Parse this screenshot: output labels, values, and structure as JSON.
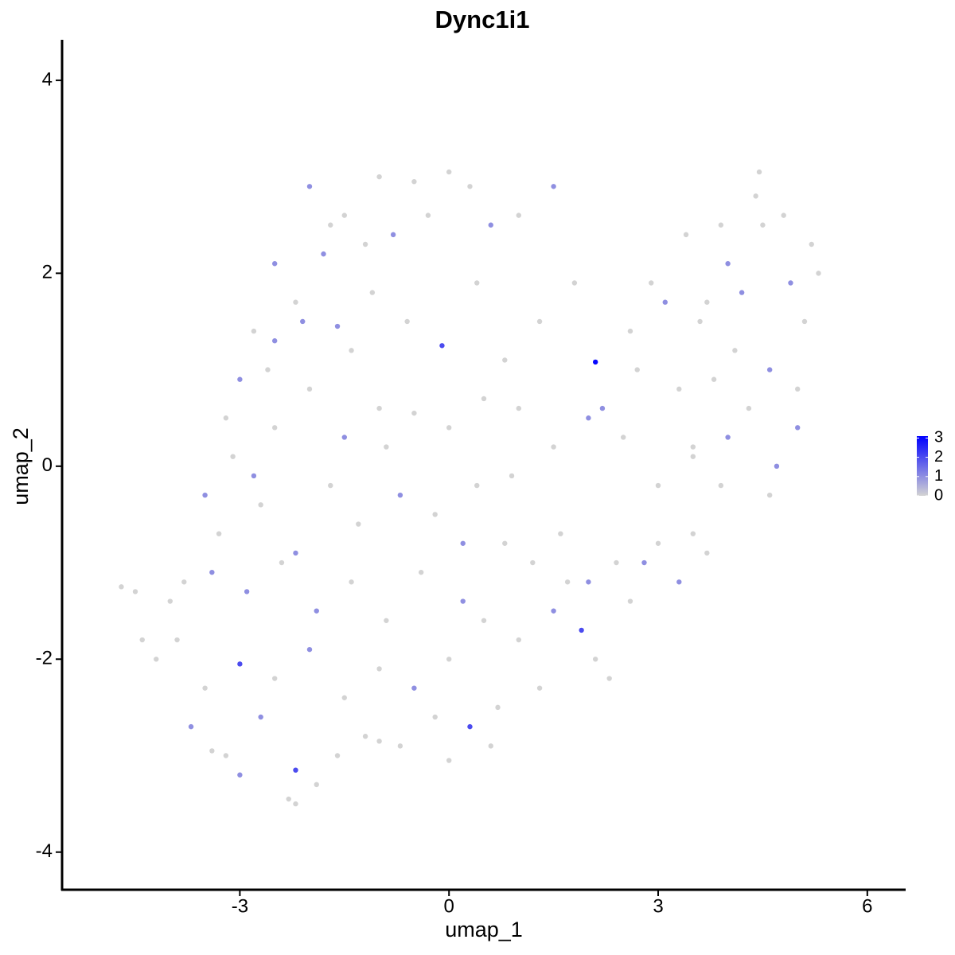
{
  "chart_data": {
    "type": "scatter",
    "title": "Dync1i1",
    "xlabel": "umap_1",
    "ylabel": "umap_2",
    "xlim": [
      -5.55,
      6.55
    ],
    "ylim": [
      -4.39,
      4.42
    ],
    "xticks": [
      -3,
      0,
      3,
      6
    ],
    "yticks": [
      -4,
      -2,
      0,
      2,
      4
    ],
    "color_low": "#d3d3d3",
    "color_high": "#0000ff",
    "color_range": [
      0,
      3.1
    ],
    "colorbar_ticks": [
      0,
      1,
      2,
      3
    ],
    "x": [
      -2.0,
      -1.5,
      -1.0,
      -0.5,
      0.0,
      0.3,
      -1.8,
      -2.2,
      -2.5,
      -1.2,
      -2.8,
      -2.6,
      -2.1,
      -1.6,
      -1.1,
      -0.6,
      -0.1,
      0.4,
      -0.8,
      -1.4,
      -3.2,
      -3.0,
      -2.5,
      -2.0,
      -1.5,
      -1.0,
      -0.5,
      0.0,
      0.5,
      -2.8,
      -3.5,
      -3.3,
      -2.7,
      -2.2,
      -1.7,
      -1.3,
      -0.7,
      -0.2,
      0.4,
      0.9,
      -4.0,
      -3.8,
      -3.4,
      -2.9,
      -2.4,
      -1.9,
      -1.4,
      -0.9,
      -0.4,
      0.2,
      -4.2,
      -3.9,
      -3.5,
      -3.0,
      -2.5,
      -2.0,
      -1.5,
      -1.0,
      -0.5,
      0.0,
      -3.7,
      -3.2,
      -2.7,
      -2.2,
      -1.9,
      -1.2,
      -0.7,
      -0.2,
      0.3,
      0.6,
      -4.7,
      -4.5,
      -4.4,
      -2.3,
      -2.2,
      -3.4,
      -3.0,
      -1.6,
      -1.0,
      0.0,
      0.8,
      1.2,
      1.6,
      2.0,
      2.4,
      0.5,
      1.0,
      1.5,
      1.9,
      2.3,
      2.8,
      3.0,
      3.3,
      3.5,
      3.7,
      2.6,
      2.1,
      1.3,
      0.7,
      1.7,
      1.0,
      1.5,
      2.0,
      2.5,
      3.0,
      3.5,
      0.8,
      1.3,
      2.2,
      2.7,
      2.1,
      2.6,
      3.1,
      3.6,
      4.1,
      4.6,
      5.0,
      5.3,
      2.9,
      3.4,
      3.9,
      4.4,
      4.8,
      5.2,
      4.0,
      4.5,
      3.7,
      4.2,
      4.9,
      5.1,
      4.45,
      4.0,
      3.5,
      4.3,
      4.7,
      3.8,
      3.3,
      3.9,
      4.6,
      5.0,
      1.5,
      1.0,
      0.6,
      -0.3,
      -1.7,
      -2.5,
      -3.1,
      -0.9,
      0.2,
      1.8
    ],
    "y": [
      2.9,
      2.6,
      3.0,
      2.95,
      3.05,
      2.9,
      2.2,
      1.7,
      2.1,
      2.3,
      1.4,
      1.0,
      1.5,
      1.45,
      1.8,
      1.5,
      1.25,
      1.9,
      2.4,
      1.2,
      0.5,
      0.9,
      0.4,
      0.8,
      0.3,
      0.6,
      0.55,
      0.4,
      0.7,
      -0.1,
      -0.3,
      -0.7,
      -0.4,
      -0.9,
      -0.2,
      -0.6,
      -0.3,
      -0.5,
      -0.2,
      -0.1,
      -1.4,
      -1.2,
      -1.1,
      -1.3,
      -1.0,
      -1.5,
      -1.2,
      -1.6,
      -1.1,
      -1.4,
      -2.0,
      -1.8,
      -2.3,
      -2.05,
      -2.2,
      -1.9,
      -2.4,
      -2.1,
      -2.3,
      -2.0,
      -2.7,
      -3.0,
      -2.6,
      -3.15,
      -3.3,
      -2.8,
      -2.9,
      -2.6,
      -2.7,
      -2.9,
      -1.25,
      -1.3,
      -1.8,
      -3.45,
      -3.5,
      -2.95,
      -3.2,
      -3.0,
      -2.85,
      -3.05,
      -0.8,
      -1.0,
      -0.7,
      -1.2,
      -1.0,
      -1.6,
      -1.8,
      -1.5,
      -1.7,
      -2.2,
      -1.0,
      -0.8,
      -1.2,
      -0.7,
      -0.9,
      -1.4,
      -2.0,
      -2.3,
      -2.5,
      -1.2,
      0.6,
      0.2,
      0.5,
      0.3,
      -0.2,
      0.1,
      1.1,
      1.5,
      0.6,
      1.0,
      1.08,
      1.4,
      1.7,
      1.5,
      1.2,
      1.0,
      0.8,
      2.0,
      1.9,
      2.4,
      2.5,
      2.8,
      2.6,
      2.3,
      2.1,
      2.5,
      1.7,
      1.8,
      1.9,
      1.5,
      3.05,
      0.3,
      0.2,
      0.6,
      0.0,
      0.9,
      0.8,
      -0.2,
      -0.3,
      0.4,
      2.9,
      2.6,
      2.5,
      2.6,
      2.5,
      1.3,
      0.1,
      0.2,
      -0.8,
      1.9
    ],
    "values": [
      1,
      0,
      0,
      0,
      0,
      0,
      1,
      0,
      1,
      0,
      0,
      0,
      1,
      1,
      0,
      0,
      2,
      0,
      1,
      0,
      0,
      1,
      0,
      0,
      1,
      0,
      0,
      0,
      0,
      1,
      1,
      0,
      0,
      1,
      0,
      0,
      1,
      0,
      0,
      0,
      0,
      0,
      1,
      1,
      0,
      1,
      0,
      0,
      0,
      1,
      0,
      0,
      0,
      2,
      0,
      1,
      0,
      0,
      1,
      0,
      1,
      0,
      1,
      2,
      0,
      0,
      0,
      0,
      2,
      0,
      0,
      0,
      0,
      0,
      0,
      0,
      1,
      0,
      0,
      0,
      0,
      0,
      0,
      1,
      0,
      0,
      0,
      1,
      2,
      0,
      1,
      0,
      1,
      0,
      0,
      0,
      0,
      0,
      0,
      0,
      0,
      0,
      1,
      0,
      0,
      0,
      0,
      0,
      1,
      0,
      3,
      0,
      1,
      0,
      0,
      1,
      0,
      0,
      0,
      0,
      0,
      0,
      0,
      0,
      1,
      0,
      0,
      1,
      1,
      0,
      0,
      1,
      0,
      0,
      1,
      0,
      0,
      0,
      0,
      1,
      1,
      0,
      1,
      0,
      0,
      1,
      0,
      0,
      1,
      0
    ]
  }
}
